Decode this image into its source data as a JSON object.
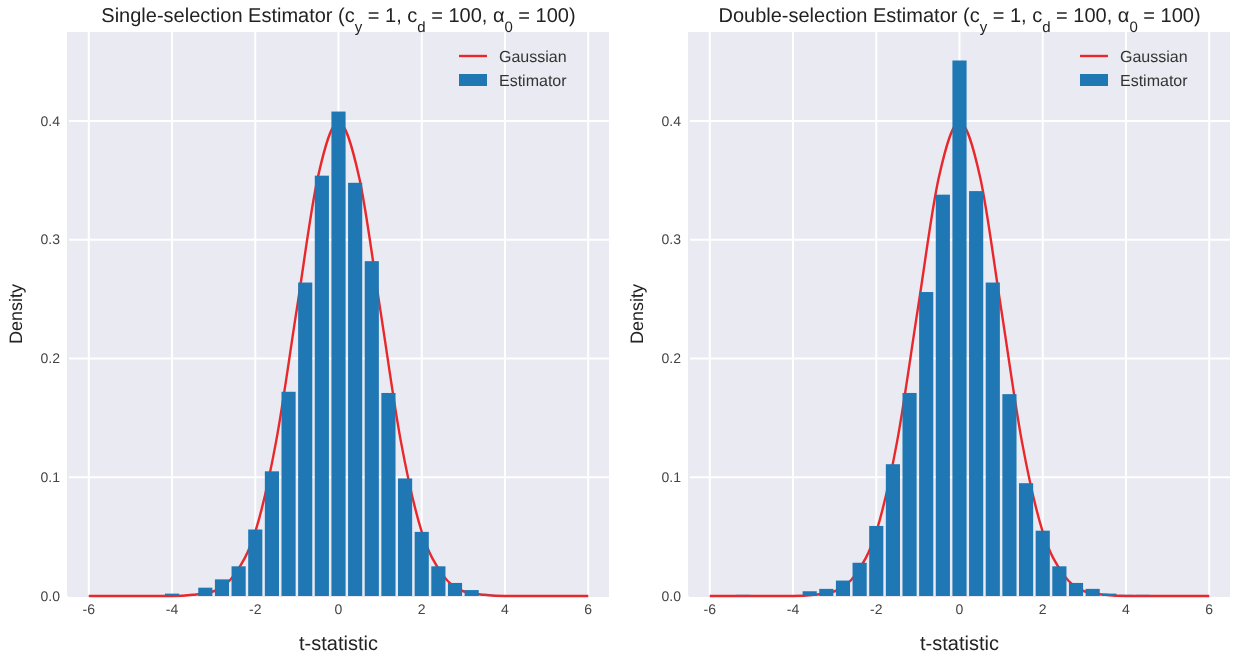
{
  "chart_data": [
    {
      "type": "histogram",
      "title": "Single-selection Estimator (c$_{y}$ = 1, c$_{d}$ = 100, α$_{0}$ = 100)",
      "xlabel": "t-statistic",
      "ylabel": "Density",
      "xlim": [
        -6.5,
        6.5
      ],
      "ylim": [
        0,
        0.475
      ],
      "xticks": [
        -6,
        -4,
        -2,
        0,
        2,
        4,
        6
      ],
      "yticks": [
        {
          "value": 0,
          "label": "0.0"
        },
        0.1,
        0.2,
        0.3,
        0.4
      ],
      "grid": true,
      "legend": "top right",
      "series": [
        {
          "type": "line",
          "name": "Gaussian",
          "color": "#e8282b",
          "x": [
            -6,
            -5.5,
            -5,
            -4.5,
            -4,
            -3.5,
            -3,
            -2.5,
            -2,
            -1.5,
            -1,
            -0.5,
            0,
            0.5,
            1,
            1.5,
            2,
            2.5,
            3,
            3.5,
            4,
            4.5,
            5,
            5.5,
            6
          ],
          "values": [
            0,
            0,
            0,
            0,
            0,
            0.001,
            0.004,
            0.018,
            0.054,
            0.13,
            0.242,
            0.352,
            0.399,
            0.352,
            0.242,
            0.13,
            0.054,
            0.018,
            0.004,
            0.001,
            0,
            0,
            0,
            0,
            0
          ]
        },
        {
          "name": "Estimator",
          "color": "#1f77b4",
          "bins": [
            -4.2,
            -3.8,
            -3.4,
            -3,
            -2.6,
            -2.2,
            -1.8,
            -1.4,
            -1,
            -0.6,
            -0.2,
            0.2,
            0.6,
            1,
            1.4,
            1.8,
            2.2,
            2.6,
            3,
            3.4,
            3.8
          ],
          "values": [
            0.002,
            0,
            0.007,
            0.014,
            0.025,
            0.056,
            0.105,
            0.172,
            0.264,
            0.354,
            0.408,
            0.348,
            0.282,
            0.171,
            0.099,
            0.054,
            0.025,
            0.011,
            0.005,
            0.001
          ]
        }
      ]
    },
    {
      "type": "histogram",
      "title": "Double-selection Estimator (c$_{y}$ = 1, c$_{d}$ = 100, α$_{0}$ = 100)",
      "xlabel": "t-statistic",
      "ylabel": "Density",
      "xlim": [
        -6.5,
        6.5
      ],
      "ylim": [
        0,
        0.475
      ],
      "xticks": [
        -6,
        -4,
        -2,
        0,
        2,
        4,
        6
      ],
      "yticks": [
        {
          "value": 0,
          "label": "0.0"
        },
        0.1,
        0.2,
        0.3,
        0.4
      ],
      "grid": true,
      "legend": "top right",
      "series": [
        {
          "type": "line",
          "name": "Gaussian",
          "color": "#e8282b",
          "x": [
            -6,
            -5.5,
            -5,
            -4.5,
            -4,
            -3.5,
            -3,
            -2.5,
            -2,
            -1.5,
            -1,
            -0.5,
            0,
            0.5,
            1,
            1.5,
            2,
            2.5,
            3,
            3.5,
            4,
            4.5,
            5,
            5.5,
            6
          ],
          "values": [
            0,
            0,
            0,
            0,
            0,
            0.001,
            0.004,
            0.018,
            0.054,
            0.13,
            0.242,
            0.352,
            0.399,
            0.352,
            0.242,
            0.13,
            0.054,
            0.018,
            0.004,
            0.001,
            0,
            0,
            0,
            0,
            0
          ]
        },
        {
          "name": "Estimator",
          "color": "#1f77b4",
          "bins": [
            -5.4,
            -5,
            -4.6,
            -4.2,
            -3.8,
            -3.4,
            -3,
            -2.6,
            -2.2,
            -1.8,
            -1.4,
            -1,
            -0.6,
            -0.2,
            0.2,
            0.6,
            1,
            1.4,
            1.8,
            2.2,
            2.6,
            3,
            3.4,
            3.8,
            4.2,
            4.6
          ],
          "values": [
            0.001,
            0,
            0,
            0,
            0.004,
            0.006,
            0.013,
            0.028,
            0.059,
            0.111,
            0.171,
            0.256,
            0.338,
            0.451,
            0.341,
            0.264,
            0.17,
            0.095,
            0.055,
            0.025,
            0.011,
            0.006,
            0.002,
            0.001,
            0.001
          ]
        }
      ]
    }
  ]
}
